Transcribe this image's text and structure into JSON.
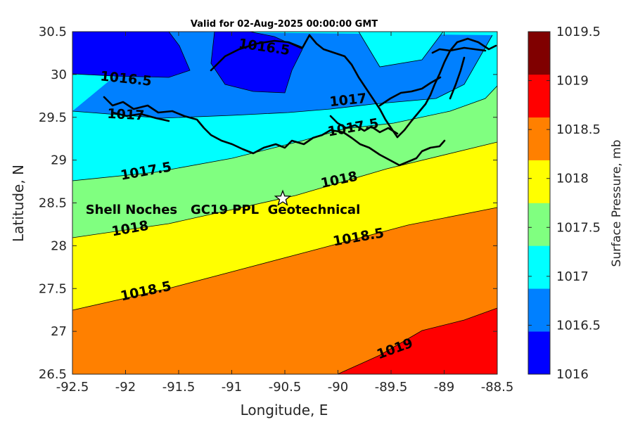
{
  "chart_data": {
    "type": "heatmap",
    "title": "Valid for 02-Aug-2025 00:00:00 GMT",
    "xlabel": "Longitude, E",
    "ylabel": "Latitude, N",
    "xlim": [
      -92.5,
      -88.5
    ],
    "ylim": [
      26.5,
      30.5
    ],
    "xticks": [
      "-92.5",
      "-92",
      "-91.5",
      "-91",
      "-90.5",
      "-90",
      "-89.5",
      "-89",
      "-88.5"
    ],
    "yticks": [
      "26.5",
      "27",
      "27.5",
      "28",
      "28.5",
      "29",
      "29.5",
      "30",
      "30.5"
    ],
    "colorbar": {
      "label": "Surface Pressure, mb",
      "ticks": [
        "1016",
        "1016.5",
        "1017",
        "1017.5",
        "1018",
        "1018.5",
        "1019",
        "1019.5"
      ],
      "levels": [
        1016,
        1016.5,
        1017,
        1017.5,
        1018,
        1018.5,
        1019,
        1019.5
      ],
      "colors": [
        "#0000ff",
        "#0080ff",
        "#00ffff",
        "#80ff80",
        "#ffff00",
        "#ff8000",
        "#ff0000",
        "#800000"
      ]
    },
    "contour_labels": [
      {
        "text": "1016.5",
        "lon": -90.7,
        "lat": 30.27
      },
      {
        "text": "1016.5",
        "lon": -92.0,
        "lat": 29.9
      },
      {
        "text": "1017",
        "lon": -92.0,
        "lat": 29.48
      },
      {
        "text": "1017",
        "lon": -89.9,
        "lat": 29.65
      },
      {
        "text": "1017.5",
        "lon": -89.85,
        "lat": 29.33
      },
      {
        "text": "1017.5",
        "lon": -91.8,
        "lat": 28.82
      },
      {
        "text": "1018",
        "lon": -89.98,
        "lat": 28.72
      },
      {
        "text": "1018",
        "lon": -91.95,
        "lat": 28.15
      },
      {
        "text": "1018.5",
        "lon": -89.8,
        "lat": 28.05
      },
      {
        "text": "1018.5",
        "lon": -91.8,
        "lat": 27.42
      },
      {
        "text": "1019",
        "lon": -89.45,
        "lat": 26.75
      }
    ],
    "marker": {
      "lon": -90.52,
      "lat": 28.55,
      "symbol": "star"
    },
    "annotation": {
      "text": "Shell Noches   GC19 PPL  Geotechnical",
      "lon": -90.5,
      "lat": 28.42
    }
  }
}
